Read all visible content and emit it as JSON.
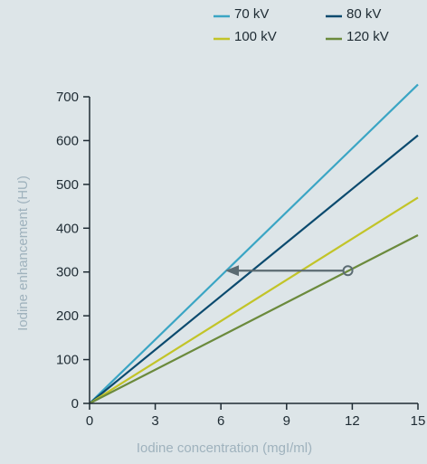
{
  "chart_data": {
    "type": "line",
    "title": "",
    "xlabel": "Iodine concentration (mgI/ml)",
    "ylabel": "Iodine enhancement (HU)",
    "xlim": [
      0,
      15
    ],
    "ylim": [
      0,
      700
    ],
    "x_ticks": [
      "0",
      "3",
      "6",
      "9",
      "12",
      "15"
    ],
    "y_ticks": [
      "0",
      "100",
      "200",
      "300",
      "400",
      "500",
      "600",
      "700"
    ],
    "grid": false,
    "legend_position": "top-right",
    "series": [
      {
        "name": "70 kV",
        "color": "#3aa5c4",
        "x": [
          0,
          15
        ],
        "y": [
          0,
          728
        ]
      },
      {
        "name": "80 kV",
        "color": "#0b4a6e",
        "x": [
          0,
          15
        ],
        "y": [
          0,
          612
        ]
      },
      {
        "name": "100 kV",
        "color": "#c2c428",
        "x": [
          0,
          15
        ],
        "y": [
          0,
          470
        ]
      },
      {
        "name": "120 kV",
        "color": "#6b8a3c",
        "x": [
          0,
          15
        ],
        "y": [
          0,
          384
        ]
      }
    ],
    "annotation": {
      "type": "arrow",
      "color": "#5b6b72",
      "from": {
        "x": 11.8,
        "y": 303
      },
      "to": {
        "x": 6.2,
        "y": 303
      }
    }
  }
}
